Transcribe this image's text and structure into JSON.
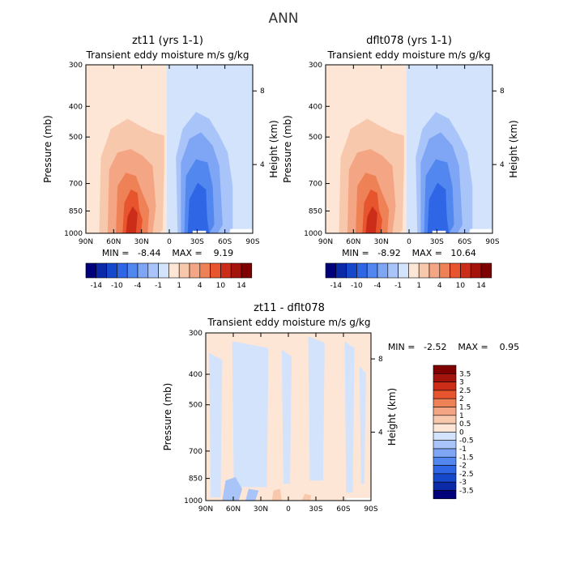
{
  "page_title": "ANN",
  "chart_data": [
    {
      "type": "heatmap",
      "title": "zt11 (yrs 1-1)",
      "subtitle": "Transient eddy moisture m/s g/kg",
      "ylabel": "Pressure (mb)",
      "ylabel_right": "Height (km)",
      "x_ticks": [
        "90N",
        "60N",
        "30N",
        "0",
        "30S",
        "60S",
        "90S"
      ],
      "y_ticks": [
        "300",
        "400",
        "500",
        "700",
        "850",
        "1000"
      ],
      "y_ticks_right": [
        "8",
        "4"
      ],
      "xlim": [
        -90,
        90
      ],
      "ylim": [
        1000,
        300
      ],
      "stats": "MIN =   -8.44    MAX =    9.19",
      "min": -8.44,
      "max": 9.19,
      "colorbar_labels": [
        "-14",
        "-10",
        "-4",
        "-1",
        "1",
        "4",
        "10",
        "14"
      ],
      "colorbar_orientation": "horizontal"
    },
    {
      "type": "heatmap",
      "title": "dflt078 (yrs 1-1)",
      "subtitle": "Transient eddy moisture m/s g/kg",
      "ylabel": "Pressure (mb)",
      "ylabel_right": "Height (km)",
      "x_ticks": [
        "90N",
        "60N",
        "30N",
        "0",
        "30S",
        "60S",
        "90S"
      ],
      "y_ticks": [
        "300",
        "400",
        "500",
        "700",
        "850",
        "1000"
      ],
      "y_ticks_right": [
        "8",
        "4"
      ],
      "xlim": [
        -90,
        90
      ],
      "ylim": [
        1000,
        300
      ],
      "stats": "MIN =   -8.92    MAX =   10.64",
      "min": -8.92,
      "max": 10.64,
      "colorbar_labels": [
        "-14",
        "-10",
        "-4",
        "-1",
        "1",
        "4",
        "10",
        "14"
      ],
      "colorbar_orientation": "horizontal"
    },
    {
      "type": "heatmap",
      "title": "zt11 - dflt078",
      "subtitle": "Transient eddy moisture m/s g/kg",
      "ylabel": "Pressure (mb)",
      "ylabel_right": "Height (km)",
      "x_ticks": [
        "90N",
        "60N",
        "30N",
        "0",
        "30S",
        "60S",
        "90S"
      ],
      "y_ticks": [
        "300",
        "400",
        "500",
        "700",
        "850",
        "1000"
      ],
      "y_ticks_right": [
        "8",
        "4"
      ],
      "xlim": [
        -90,
        90
      ],
      "ylim": [
        1000,
        300
      ],
      "stats": "MIN =   -2.52    MAX =    0.95",
      "min": -2.52,
      "max": 0.95,
      "colorbar_labels": [
        "3.5",
        "3",
        "2.5",
        "2",
        "1.5",
        "1",
        "0.5",
        "0",
        "-0.5",
        "-1",
        "-1.5",
        "-2",
        "-2.5",
        "-3",
        "-3.5"
      ],
      "colorbar_orientation": "vertical"
    }
  ],
  "colors": {
    "scale": [
      "#00007a",
      "#0a2aa8",
      "#1648cc",
      "#2f66e6",
      "#5287f0",
      "#7ea6f5",
      "#a9c4f9",
      "#d3e3fb",
      "#fde6d6",
      "#f8c8ac",
      "#f4a583",
      "#ef8157",
      "#e7552f",
      "#cc2d18",
      "#a5130d",
      "#7f0000"
    ],
    "neg1": "#d3e3fb",
    "neg2": "#a9c4f9",
    "neg3": "#7ea6f5",
    "neg4": "#5287f0",
    "neg5": "#2f66e6",
    "pos1": "#fde6d6",
    "pos2": "#f8c8ac",
    "pos3": "#f4a583",
    "pos4": "#ef8157",
    "pos5": "#e7552f",
    "pos6": "#cc2d18"
  }
}
